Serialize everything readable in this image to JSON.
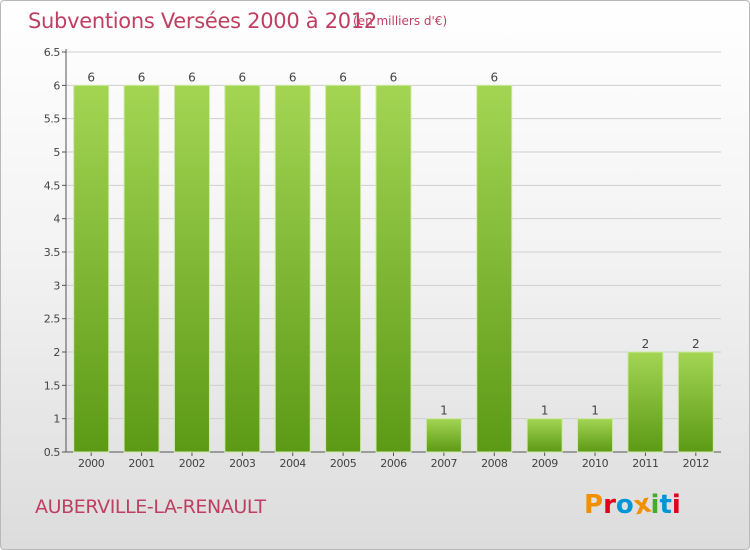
{
  "header": {
    "title": "Subventions Versées 2000 à 2012",
    "unit": "(en milliers d'€)"
  },
  "footer": {
    "commune": "AUBERVILLE-LA-RENAULT",
    "logo": "Proxiti",
    "logo_colors": [
      "#f29100",
      "#e2001a",
      "#0096d6",
      "#f29100",
      "#49a82d",
      "#0096d6",
      "#e2001a"
    ]
  },
  "colors": {
    "bar_light": "#a3d553",
    "bar_dark": "#5c9a16",
    "grid": "#cfcfcf",
    "text_accent": "#bf3f62"
  },
  "chart_data": {
    "type": "bar",
    "title": "Subventions Versées 2000 à 2012",
    "subtitle": "(en milliers d'€)",
    "xlabel": "",
    "ylabel": "",
    "categories": [
      "2000",
      "2001",
      "2002",
      "2003",
      "2004",
      "2005",
      "2006",
      "2007",
      "2008",
      "2009",
      "2010",
      "2011",
      "2012"
    ],
    "values": [
      6,
      6,
      6,
      6,
      6,
      6,
      6,
      1,
      6,
      1,
      1,
      2,
      2
    ],
    "ylim": [
      0.5,
      6.5
    ],
    "yticks": [
      "0.5",
      "1",
      "1.5",
      "2",
      "2.5",
      "3",
      "3.5",
      "4",
      "4.5",
      "5",
      "5.5",
      "6",
      "6.5"
    ],
    "grid": true,
    "legend": "none"
  }
}
